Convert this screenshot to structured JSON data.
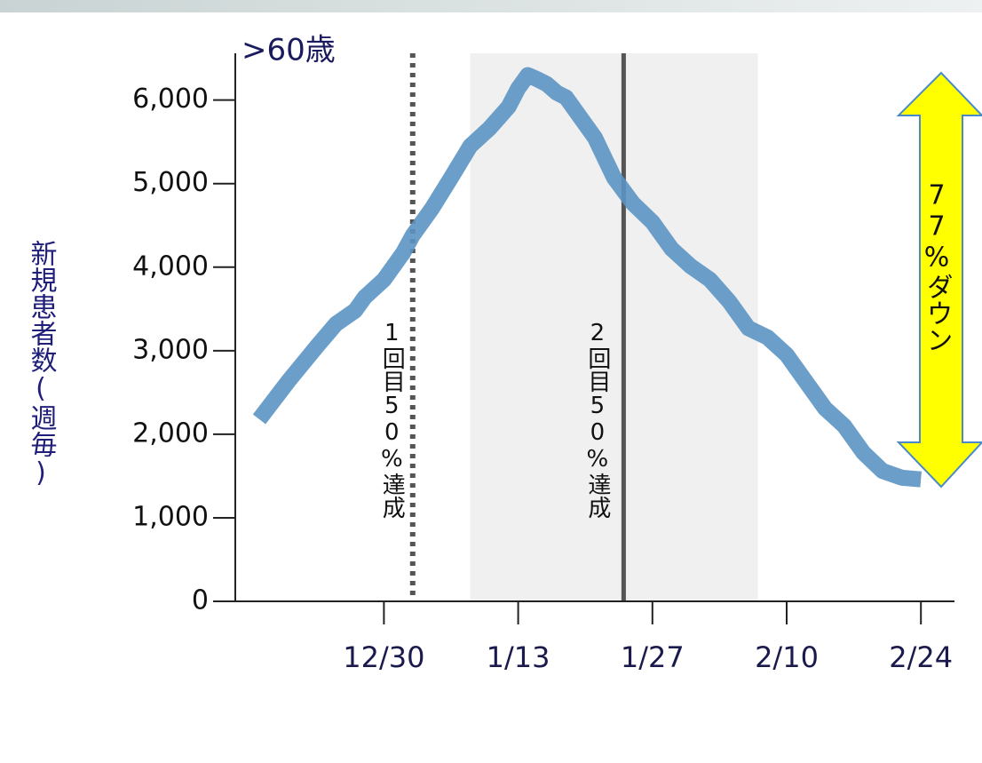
{
  "chart_data": {
    "type": "line",
    "title": ">60歳",
    "y_label": "新規患者数(週毎)",
    "x": [
      -13,
      -10,
      -7,
      -5,
      -3,
      -2,
      0,
      2,
      3,
      5,
      7,
      9,
      11,
      13,
      14,
      15,
      16,
      17,
      18,
      19,
      20,
      22,
      24,
      26,
      28,
      30,
      32,
      34,
      36,
      38,
      40,
      42,
      44,
      46,
      48,
      50,
      52,
      54,
      56
    ],
    "values": [
      2180,
      2630,
      3050,
      3320,
      3480,
      3640,
      3850,
      4170,
      4380,
      4700,
      5070,
      5450,
      5660,
      5920,
      6140,
      6300,
      6250,
      6190,
      6090,
      6030,
      5870,
      5550,
      5070,
      4760,
      4540,
      4220,
      4010,
      3850,
      3590,
      3270,
      3160,
      2950,
      2630,
      2310,
      2100,
      1780,
      1560,
      1480,
      1460
    ],
    "color": "#5b93c3",
    "xlim": [
      -15.5,
      59.5
    ],
    "xticks": [
      {
        "value": 0,
        "label": "12/30"
      },
      {
        "value": 14,
        "label": "1/13"
      },
      {
        "value": 28,
        "label": "1/27"
      },
      {
        "value": 42,
        "label": "2/10"
      },
      {
        "value": 56,
        "label": "2/24"
      }
    ],
    "ylim": [
      0,
      6560
    ],
    "yticks": [
      0,
      {
        "value": 1000,
        "label": "1,000"
      },
      {
        "value": 2000,
        "label": "2,000"
      },
      {
        "value": 3000,
        "label": "3,000"
      },
      {
        "value": 4000,
        "label": "4,000"
      },
      {
        "value": 5000,
        "label": "5,000"
      },
      {
        "value": 6000,
        "label": "6,000"
      }
    ],
    "shaded_span": [
      9,
      39
    ],
    "markers": [
      {
        "text": "1回目50%達成",
        "x": 3,
        "style": "dotted"
      },
      {
        "text": "2回目50%達成",
        "x": 25,
        "style": "solid"
      }
    ],
    "drop_annotation": "77%ダウン"
  }
}
